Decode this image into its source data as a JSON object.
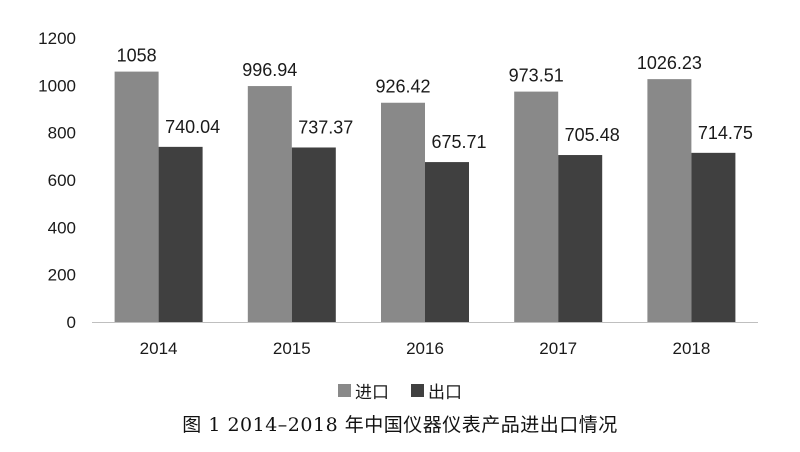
{
  "chart_data": {
    "type": "bar",
    "categories": [
      "2014",
      "2015",
      "2016",
      "2017",
      "2018"
    ],
    "series": [
      {
        "name": "进口",
        "values": [
          1058,
          996.94,
          926.42,
          973.51,
          1026.23
        ],
        "labels": [
          "1058",
          "996.94",
          "926.42",
          "973.51",
          "1026.23"
        ],
        "color": "#898989"
      },
      {
        "name": "出口",
        "values": [
          740.04,
          737.37,
          675.71,
          705.48,
          714.75
        ],
        "labels": [
          "740.04",
          "737.37",
          "675.71",
          "705.48",
          "714.75"
        ],
        "color": "#404040"
      }
    ],
    "yticks": [
      "0",
      "200",
      "400",
      "600",
      "800",
      "1000",
      "1200"
    ],
    "ylim": [
      0,
      1200
    ],
    "grid": false,
    "legend_position": "bottom-center"
  },
  "caption": "图 1  2014–2018 年中国仪器仪表产品进出口情况"
}
